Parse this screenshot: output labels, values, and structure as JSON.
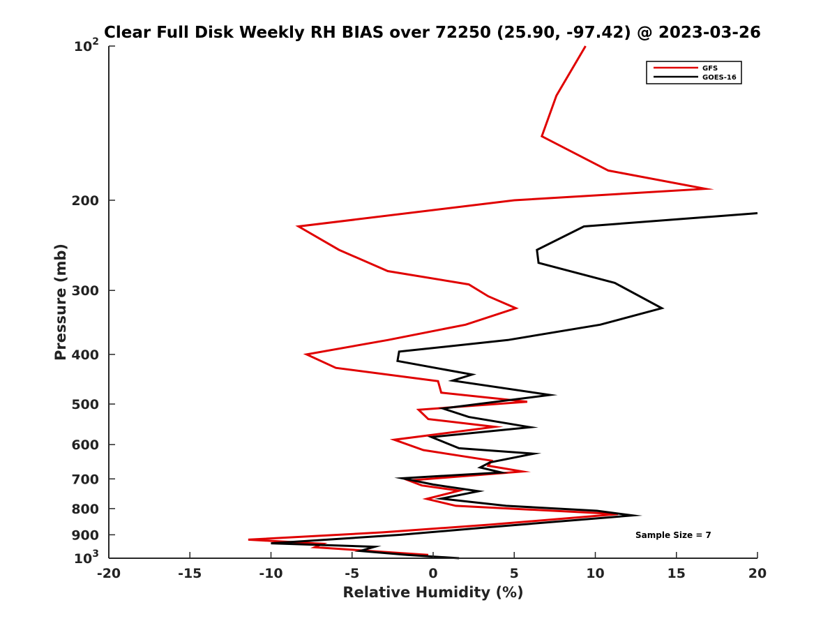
{
  "chart_data": {
    "type": "line",
    "title": "Clear Full Disk Weekly RH BIAS over 72250 (25.90, -97.42) @ 2023-03-26",
    "xlabel": "Relative Humidity (%)",
    "ylabel": "Pressure (mb)",
    "xlim": [
      -20,
      20
    ],
    "ylim": [
      100,
      1000
    ],
    "yscale": "log",
    "y_reversed": true,
    "x_ticks": [
      "-20",
      "-15",
      "-10",
      "-5",
      "0",
      "5",
      "10",
      "15",
      "20"
    ],
    "y_ticks": [
      {
        "value": 100,
        "base": "10",
        "exp": "2"
      },
      {
        "value": 200,
        "label": "200"
      },
      {
        "value": 300,
        "label": "300"
      },
      {
        "value": 400,
        "label": "400"
      },
      {
        "value": 500,
        "label": "500"
      },
      {
        "value": 600,
        "label": "600"
      },
      {
        "value": 700,
        "label": "700"
      },
      {
        "value": 800,
        "label": "800"
      },
      {
        "value": 900,
        "label": "900"
      },
      {
        "value": 1000,
        "base": "10",
        "exp": "3"
      }
    ],
    "grid": false,
    "legend_position": "top-right",
    "annotation": "Sample Size = 7",
    "series": [
      {
        "name": "GFS",
        "color": "#e00000",
        "points": [
          [
            9.4,
            100
          ],
          [
            7.6,
            125
          ],
          [
            6.7,
            150
          ],
          [
            10.8,
            175
          ],
          [
            16.8,
            190
          ],
          [
            5,
            200
          ],
          [
            -8.3,
            225
          ],
          [
            -5.8,
            250
          ],
          [
            -2.8,
            275
          ],
          [
            2.2,
            292
          ],
          [
            3.4,
            308
          ],
          [
            5.1,
            325
          ],
          [
            2,
            350
          ],
          [
            -2.8,
            375
          ],
          [
            -7.8,
            400
          ],
          [
            -6,
            425
          ],
          [
            0.3,
            451
          ],
          [
            0.5,
            475
          ],
          [
            5.8,
            495
          ],
          [
            -0.9,
            513
          ],
          [
            -0.3,
            535
          ],
          [
            3.8,
            554
          ],
          [
            -2.4,
            587
          ],
          [
            -0.6,
            615
          ],
          [
            3.6,
            645
          ],
          [
            3.4,
            660
          ],
          [
            5.5,
            677
          ],
          [
            -1.5,
            705
          ],
          [
            -0.7,
            721
          ],
          [
            1.6,
            738
          ],
          [
            -0.4,
            766
          ],
          [
            1.4,
            790
          ],
          [
            11.4,
            820
          ],
          [
            3.5,
            860
          ],
          [
            -3.1,
            890
          ],
          [
            -11.4,
            920
          ],
          [
            -6.8,
            937
          ],
          [
            -7.3,
            952
          ],
          [
            -0.3,
            985
          ]
        ]
      },
      {
        "name": "GOES-16",
        "color": "#000000",
        "points": [
          [
            20,
            212
          ],
          [
            9.3,
            225
          ],
          [
            6.4,
            250
          ],
          [
            6.5,
            265
          ],
          [
            11.2,
            290
          ],
          [
            14.1,
            325
          ],
          [
            10.3,
            350
          ],
          [
            4.6,
            375
          ],
          [
            -2.1,
            395
          ],
          [
            -2.2,
            412
          ],
          [
            2.4,
            438
          ],
          [
            1.2,
            450
          ],
          [
            7.2,
            480
          ],
          [
            0.6,
            510
          ],
          [
            2.2,
            530
          ],
          [
            6,
            555
          ],
          [
            -0.1,
            580
          ],
          [
            1.6,
            610
          ],
          [
            6.2,
            625
          ],
          [
            3.5,
            650
          ],
          [
            2.9,
            665
          ],
          [
            4.2,
            680
          ],
          [
            -1.9,
            698
          ],
          [
            0,
            718
          ],
          [
            2.8,
            740
          ],
          [
            0.5,
            765
          ],
          [
            4.5,
            790
          ],
          [
            10.1,
            808
          ],
          [
            12.3,
            825
          ],
          [
            3.4,
            870
          ],
          [
            -2,
            900
          ],
          [
            -10,
            935
          ],
          [
            -3.6,
            950
          ],
          [
            -4.5,
            968
          ],
          [
            -1.6,
            985
          ],
          [
            1.6,
            1000
          ]
        ]
      }
    ]
  }
}
